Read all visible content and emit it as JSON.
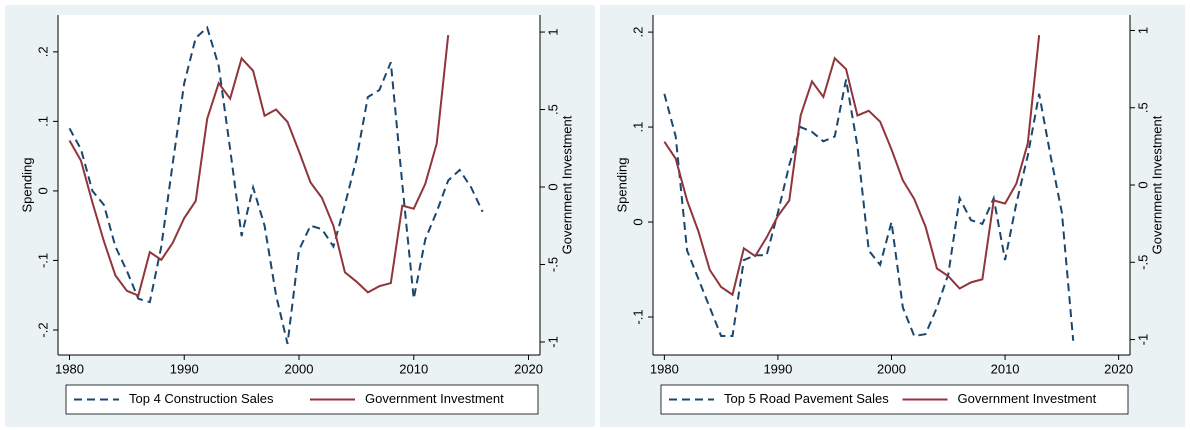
{
  "chart_data": [
    {
      "type": "line",
      "ylabel": "Spending",
      "y2label": "Government Investment",
      "xlim": [
        1979,
        2021
      ],
      "xticks": [
        1980,
        1990,
        2000,
        2010,
        2020
      ],
      "ylim": [
        -0.236,
        0.253
      ],
      "yticks": [
        {
          "value": -0.2,
          "label": "-.2"
        },
        {
          "value": -0.1,
          "label": "-.1"
        },
        0,
        {
          "value": 0.1,
          "label": ".1"
        },
        {
          "value": 0.2,
          "label": ".2"
        }
      ],
      "y2lim": [
        -1.084,
        1.11
      ],
      "y2ticks": [
        -1,
        {
          "value": -0.5,
          "label": "-.5"
        },
        0,
        {
          "value": 0.5,
          "label": ".5"
        },
        1
      ],
      "series": [
        {
          "name": "Top 4 Construction Sales",
          "color": "#1a476f",
          "style": "dashed",
          "x": [
            1980,
            1981,
            1982,
            1983,
            1984,
            1985,
            1986,
            1987,
            1988,
            1989,
            1990,
            1991,
            1992,
            1993,
            1994,
            1995,
            1996,
            1997,
            1998,
            1999,
            2000,
            2001,
            2002,
            2003,
            2004,
            2005,
            2006,
            2007,
            2008,
            2009,
            2010,
            2011,
            2012,
            2013,
            2014,
            2015,
            2016
          ],
          "values": [
            0.09,
            0.06,
            0.0,
            -0.02,
            -0.08,
            -0.115,
            -0.155,
            -0.16,
            -0.08,
            0.04,
            0.155,
            0.22,
            0.235,
            0.18,
            0.06,
            -0.065,
            0.005,
            -0.05,
            -0.15,
            -0.22,
            -0.085,
            -0.05,
            -0.055,
            -0.08,
            -0.02,
            0.045,
            0.135,
            0.145,
            0.185,
            0.01,
            -0.155,
            -0.07,
            -0.03,
            0.015,
            0.03,
            0.005,
            -0.03
          ]
        },
        {
          "name": "Government Investment",
          "color": "#90353b",
          "style": "solid",
          "axis": "y2",
          "x": [
            1980,
            1981,
            1982,
            1983,
            1984,
            1985,
            1986,
            1987,
            1988,
            1989,
            1990,
            1991,
            1992,
            1993,
            1994,
            1995,
            1996,
            1997,
            1998,
            1999,
            2000,
            2001,
            2002,
            2003,
            2004,
            2005,
            2006,
            2007,
            2008,
            2009,
            2010,
            2011,
            2012,
            2013
          ],
          "values": [
            0.3,
            0.17,
            -0.1,
            -0.35,
            -0.57,
            -0.67,
            -0.7,
            -0.42,
            -0.47,
            -0.36,
            -0.2,
            -0.09,
            0.44,
            0.67,
            0.57,
            0.83,
            0.75,
            0.46,
            0.5,
            0.42,
            0.23,
            0.03,
            -0.07,
            -0.25,
            -0.55,
            -0.61,
            -0.68,
            -0.64,
            -0.62,
            -0.12,
            -0.14,
            0.02,
            0.28,
            0.98
          ]
        }
      ]
    },
    {
      "type": "line",
      "ylabel": "Spending",
      "y2label": "Government Investment",
      "xlim": [
        1979,
        2021
      ],
      "xticks": [
        1980,
        1990,
        2000,
        2010,
        2020
      ],
      "ylim": [
        -0.14,
        0.218
      ],
      "yticks": [
        {
          "value": -0.1,
          "label": "-.1"
        },
        0,
        {
          "value": 0.1,
          "label": ".1"
        },
        {
          "value": 0.2,
          "label": ".2"
        }
      ],
      "y2lim": [
        -1.1,
        1.1
      ],
      "y2ticks": [
        -1,
        {
          "value": -0.5,
          "label": "-.5"
        },
        0,
        {
          "value": 0.5,
          "label": ".5"
        },
        1
      ],
      "series": [
        {
          "name": "Top 5 Road Pavement Sales",
          "color": "#1a476f",
          "style": "dashed",
          "x": [
            1980,
            1981,
            1982,
            1983,
            1984,
            1985,
            1986,
            1987,
            1988,
            1989,
            1990,
            1991,
            1992,
            1993,
            1994,
            1995,
            1996,
            1997,
            1998,
            1999,
            2000,
            2001,
            2002,
            2003,
            2004,
            2005,
            2006,
            2007,
            2008,
            2009,
            2010,
            2011,
            2012,
            2013,
            2014,
            2015,
            2016
          ],
          "values": [
            0.135,
            0.09,
            -0.03,
            -0.06,
            -0.09,
            -0.12,
            -0.12,
            -0.04,
            -0.035,
            -0.035,
            0.01,
            0.06,
            0.1,
            0.095,
            0.085,
            0.09,
            0.15,
            0.08,
            -0.03,
            -0.045,
            0.0,
            -0.09,
            -0.12,
            -0.118,
            -0.09,
            -0.055,
            0.025,
            0.002,
            -0.002,
            0.025,
            -0.04,
            0.02,
            0.07,
            0.135,
            0.07,
            0.01,
            -0.125
          ]
        },
        {
          "name": "Government Investment",
          "color": "#90353b",
          "style": "solid",
          "axis": "y2",
          "x": [
            1980,
            1981,
            1982,
            1983,
            1984,
            1985,
            1986,
            1987,
            1988,
            1989,
            1990,
            1991,
            1992,
            1993,
            1994,
            1995,
            1996,
            1997,
            1998,
            1999,
            2000,
            2001,
            2002,
            2003,
            2004,
            2005,
            2006,
            2007,
            2008,
            2009,
            2010,
            2011,
            2012,
            2013
          ],
          "values": [
            0.28,
            0.17,
            -0.1,
            -0.3,
            -0.55,
            -0.66,
            -0.71,
            -0.41,
            -0.46,
            -0.34,
            -0.2,
            -0.1,
            0.45,
            0.67,
            0.57,
            0.82,
            0.75,
            0.45,
            0.48,
            0.41,
            0.23,
            0.03,
            -0.09,
            -0.27,
            -0.54,
            -0.59,
            -0.67,
            -0.63,
            -0.61,
            -0.1,
            -0.12,
            0.01,
            0.27,
            0.97
          ]
        }
      ]
    }
  ]
}
